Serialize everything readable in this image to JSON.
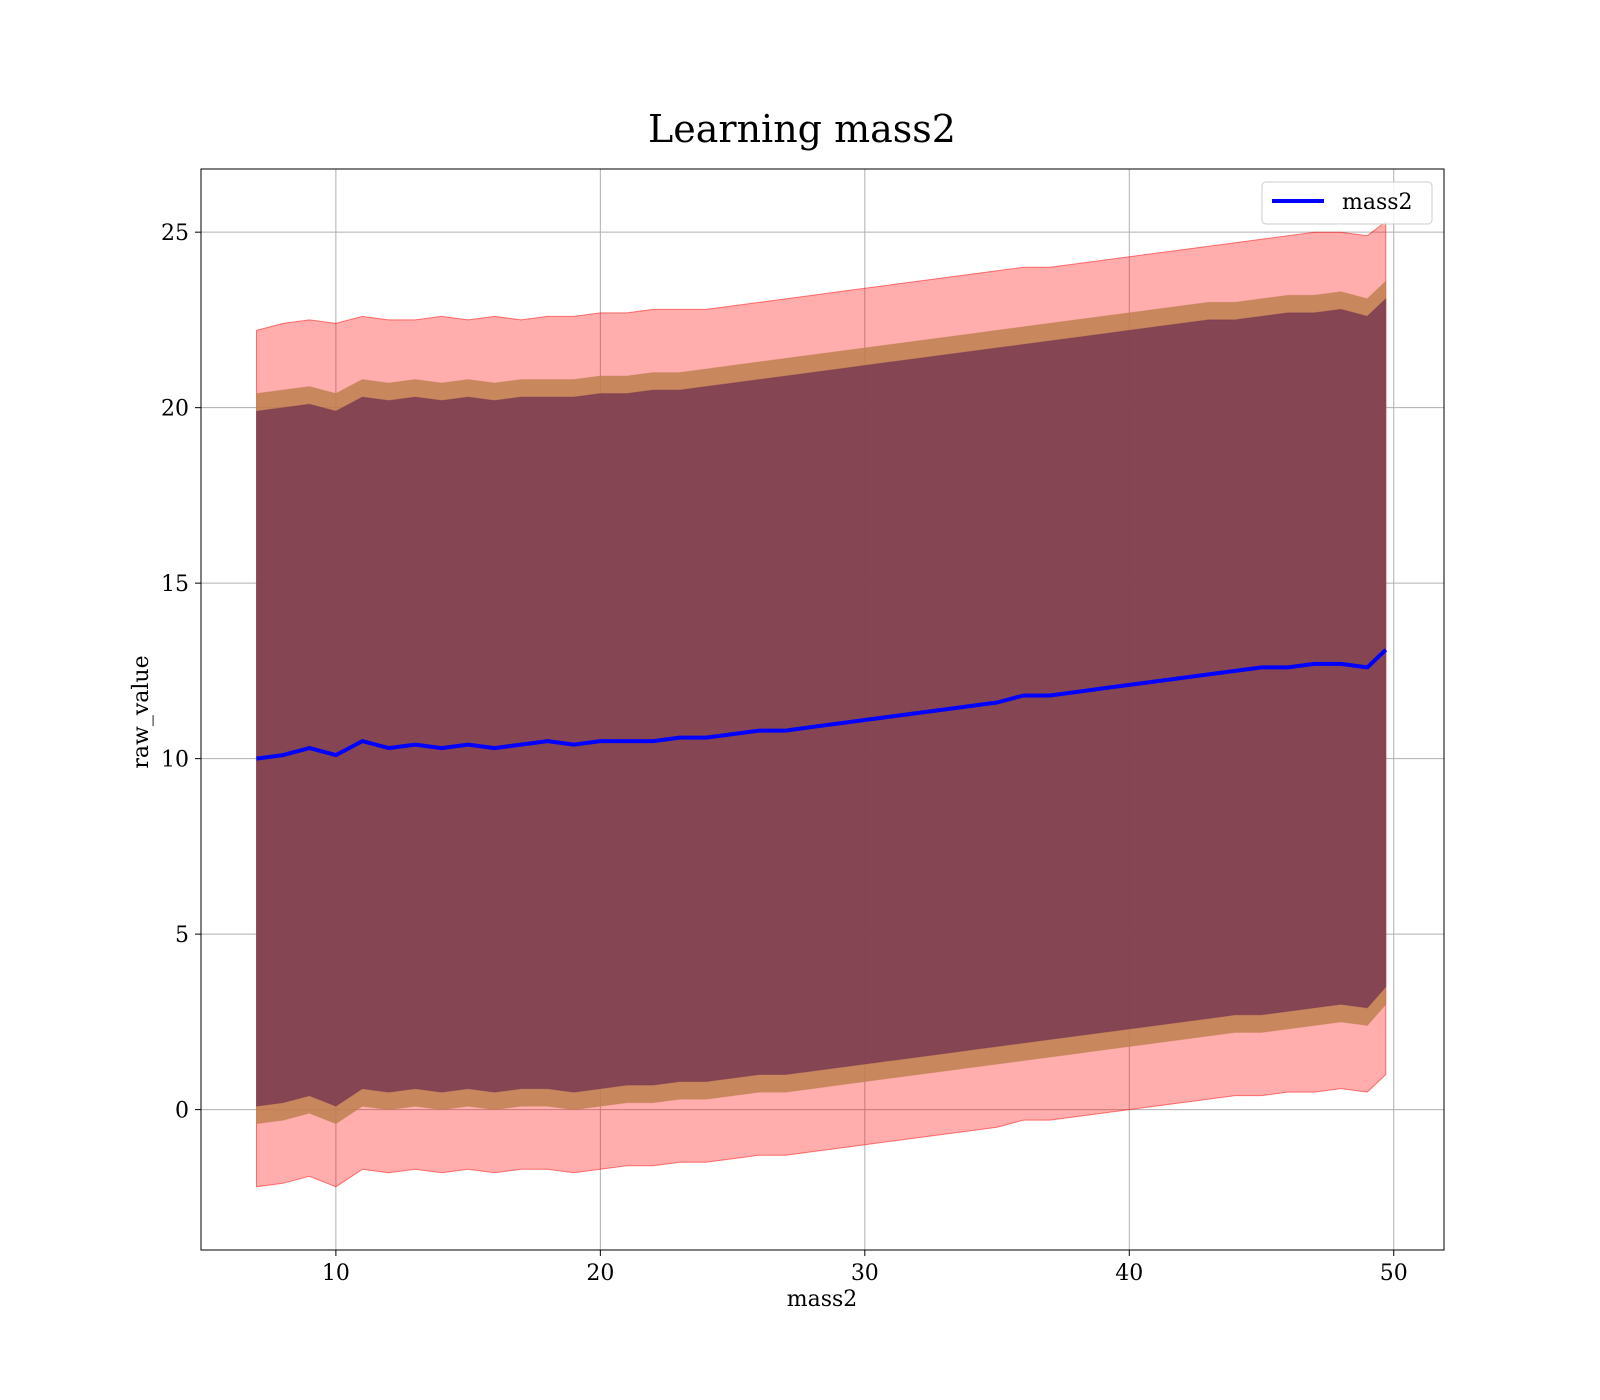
{
  "chart_data": {
    "type": "line",
    "title": "Learning mass2",
    "xlabel": "mass2",
    "ylabel": "raw_value",
    "xlim": [
      4.9,
      51.9
    ],
    "ylim": [
      -4.0,
      26.8
    ],
    "xticks": [
      10,
      20,
      30,
      40,
      50
    ],
    "yticks": [
      0,
      5,
      10,
      15,
      20,
      25
    ],
    "xtick_labels": [
      "10",
      "20",
      "30",
      "40",
      "50"
    ],
    "ytick_labels": [
      "0",
      "5",
      "10",
      "15",
      "20",
      "25"
    ],
    "grid": true,
    "legend": {
      "position": "upper right",
      "entries": [
        "mass2"
      ]
    },
    "colors": {
      "line": "#0000ff",
      "outer_band": "#ff0000",
      "middle_band": "#c08050",
      "inner_band": "#7a3a50"
    },
    "series": [
      {
        "name": "mass2",
        "x": [
          7,
          8,
          9,
          10,
          11,
          12,
          13,
          14,
          15,
          16,
          17,
          18,
          19,
          20,
          21,
          22,
          23,
          24,
          25,
          26,
          27,
          28,
          29,
          30,
          31,
          32,
          33,
          34,
          35,
          36,
          37,
          38,
          39,
          40,
          41,
          42,
          43,
          44,
          45,
          46,
          47,
          48,
          49,
          49.7
        ],
        "y": [
          10.0,
          10.1,
          10.3,
          10.1,
          10.5,
          10.3,
          10.4,
          10.3,
          10.4,
          10.3,
          10.4,
          10.5,
          10.4,
          10.5,
          10.5,
          10.5,
          10.6,
          10.6,
          10.7,
          10.8,
          10.8,
          10.9,
          11.0,
          11.1,
          11.2,
          11.3,
          11.4,
          11.5,
          11.6,
          11.8,
          11.8,
          11.9,
          12.0,
          12.1,
          12.2,
          12.3,
          12.4,
          12.5,
          12.6,
          12.6,
          12.7,
          12.7,
          12.6,
          13.1
        ]
      }
    ],
    "bands": [
      {
        "name": "outer",
        "upper": [
          22.2,
          22.4,
          22.5,
          22.4,
          22.6,
          22.5,
          22.5,
          22.6,
          22.5,
          22.6,
          22.5,
          22.6,
          22.6,
          22.7,
          22.7,
          22.8,
          22.8,
          22.8,
          22.9,
          23.0,
          23.1,
          23.2,
          23.3,
          23.4,
          23.5,
          23.6,
          23.7,
          23.8,
          23.9,
          24.0,
          24.0,
          24.1,
          24.2,
          24.3,
          24.4,
          24.5,
          24.6,
          24.7,
          24.8,
          24.9,
          25.0,
          25.0,
          24.9,
          25.3
        ],
        "lower": [
          -2.2,
          -2.1,
          -1.9,
          -2.2,
          -1.7,
          -1.8,
          -1.7,
          -1.8,
          -1.7,
          -1.8,
          -1.7,
          -1.7,
          -1.8,
          -1.7,
          -1.6,
          -1.6,
          -1.5,
          -1.5,
          -1.4,
          -1.3,
          -1.3,
          -1.2,
          -1.1,
          -1.0,
          -0.9,
          -0.8,
          -0.7,
          -0.6,
          -0.5,
          -0.3,
          -0.3,
          -0.2,
          -0.1,
          0.0,
          0.1,
          0.2,
          0.3,
          0.4,
          0.4,
          0.5,
          0.5,
          0.6,
          0.5,
          1.0
        ]
      },
      {
        "name": "middle",
        "upper": [
          20.4,
          20.5,
          20.6,
          20.4,
          20.8,
          20.7,
          20.8,
          20.7,
          20.8,
          20.7,
          20.8,
          20.8,
          20.8,
          20.9,
          20.9,
          21.0,
          21.0,
          21.1,
          21.2,
          21.3,
          21.4,
          21.5,
          21.6,
          21.7,
          21.8,
          21.9,
          22.0,
          22.1,
          22.2,
          22.3,
          22.4,
          22.5,
          22.6,
          22.7,
          22.8,
          22.9,
          23.0,
          23.0,
          23.1,
          23.2,
          23.2,
          23.3,
          23.1,
          23.6
        ],
        "lower": [
          -0.4,
          -0.3,
          -0.1,
          -0.4,
          0.1,
          0.0,
          0.1,
          0.0,
          0.1,
          0.0,
          0.1,
          0.1,
          0.0,
          0.1,
          0.2,
          0.2,
          0.3,
          0.3,
          0.4,
          0.5,
          0.5,
          0.6,
          0.7,
          0.8,
          0.9,
          1.0,
          1.1,
          1.2,
          1.3,
          1.4,
          1.5,
          1.6,
          1.7,
          1.8,
          1.9,
          2.0,
          2.1,
          2.2,
          2.2,
          2.3,
          2.4,
          2.5,
          2.4,
          3.0
        ]
      },
      {
        "name": "inner",
        "upper": [
          19.9,
          20.0,
          20.1,
          19.9,
          20.3,
          20.2,
          20.3,
          20.2,
          20.3,
          20.2,
          20.3,
          20.3,
          20.3,
          20.4,
          20.4,
          20.5,
          20.5,
          20.6,
          20.7,
          20.8,
          20.9,
          21.0,
          21.1,
          21.2,
          21.3,
          21.4,
          21.5,
          21.6,
          21.7,
          21.8,
          21.9,
          22.0,
          22.1,
          22.2,
          22.3,
          22.4,
          22.5,
          22.5,
          22.6,
          22.7,
          22.7,
          22.8,
          22.6,
          23.1
        ],
        "lower": [
          0.1,
          0.2,
          0.4,
          0.1,
          0.6,
          0.5,
          0.6,
          0.5,
          0.6,
          0.5,
          0.6,
          0.6,
          0.5,
          0.6,
          0.7,
          0.7,
          0.8,
          0.8,
          0.9,
          1.0,
          1.0,
          1.1,
          1.2,
          1.3,
          1.4,
          1.5,
          1.6,
          1.7,
          1.8,
          1.9,
          2.0,
          2.1,
          2.2,
          2.3,
          2.4,
          2.5,
          2.6,
          2.7,
          2.7,
          2.8,
          2.9,
          3.0,
          2.9,
          3.5
        ]
      }
    ]
  }
}
